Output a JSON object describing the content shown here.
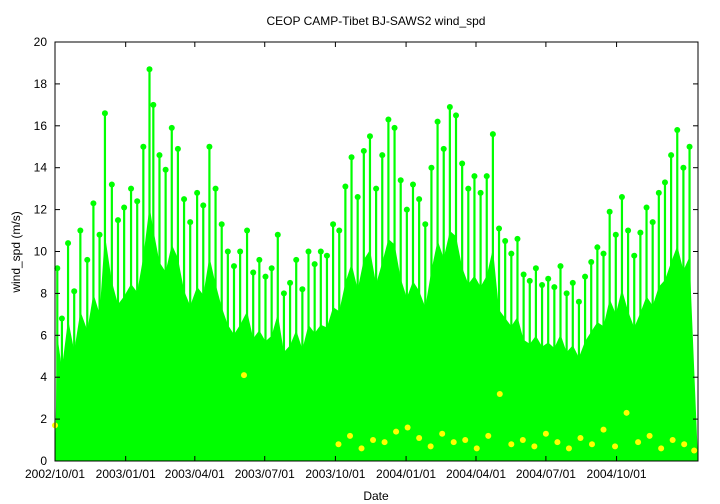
{
  "chart_data": {
    "type": "scatter",
    "title": "CEOP CAMP-Tibet BJ-SAWS2  wind_spd",
    "xlabel": "Date",
    "ylabel": "wind_spd (m/s)",
    "xlim": [
      "2002-10-01",
      "2005-01-15"
    ],
    "ylim": [
      0,
      20
    ],
    "yticks": [
      0,
      2,
      4,
      6,
      8,
      10,
      12,
      14,
      16,
      18,
      20
    ],
    "xticks": [
      {
        "date": "2002-10-01",
        "label": "2002/10/01"
      },
      {
        "date": "2003-01-01",
        "label": "2003/01/01"
      },
      {
        "date": "2003-04-01",
        "label": "2003/04/01"
      },
      {
        "date": "2003-07-01",
        "label": "2003/07/01"
      },
      {
        "date": "2003-10-01",
        "label": "2003/10/01"
      },
      {
        "date": "2004-01-01",
        "label": "2004/01/01"
      },
      {
        "date": "2004-04-01",
        "label": "2004/04/01"
      },
      {
        "date": "2004-07-01",
        "label": "2004/07/01"
      },
      {
        "date": "2004-10-01",
        "label": "2004/10/01"
      }
    ],
    "grid": false,
    "series": [
      {
        "color": "#00ff00",
        "points": [
          {
            "x": "2002-10-04",
            "y": 9.2
          },
          {
            "x": "2002-10-10",
            "y": 6.8
          },
          {
            "x": "2002-10-18",
            "y": 10.4
          },
          {
            "x": "2002-10-26",
            "y": 8.1
          },
          {
            "x": "2002-11-03",
            "y": 11.0
          },
          {
            "x": "2002-11-12",
            "y": 9.6
          },
          {
            "x": "2002-11-20",
            "y": 12.3
          },
          {
            "x": "2002-11-28",
            "y": 10.8
          },
          {
            "x": "2002-12-05",
            "y": 16.6
          },
          {
            "x": "2002-12-14",
            "y": 13.2
          },
          {
            "x": "2002-12-22",
            "y": 11.5
          },
          {
            "x": "2002-12-30",
            "y": 12.1
          },
          {
            "x": "2003-01-08",
            "y": 13.0
          },
          {
            "x": "2003-01-16",
            "y": 12.4
          },
          {
            "x": "2003-01-24",
            "y": 15.0
          },
          {
            "x": "2003-02-01",
            "y": 18.7
          },
          {
            "x": "2003-02-06",
            "y": 17.0
          },
          {
            "x": "2003-02-14",
            "y": 14.6
          },
          {
            "x": "2003-02-22",
            "y": 13.9
          },
          {
            "x": "2003-03-02",
            "y": 15.9
          },
          {
            "x": "2003-03-10",
            "y": 14.9
          },
          {
            "x": "2003-03-18",
            "y": 12.5
          },
          {
            "x": "2003-03-26",
            "y": 11.4
          },
          {
            "x": "2003-04-04",
            "y": 12.8
          },
          {
            "x": "2003-04-12",
            "y": 12.2
          },
          {
            "x": "2003-04-20",
            "y": 15.0
          },
          {
            "x": "2003-04-28",
            "y": 13.0
          },
          {
            "x": "2003-05-06",
            "y": 11.3
          },
          {
            "x": "2003-05-14",
            "y": 10.0
          },
          {
            "x": "2003-05-22",
            "y": 9.3
          },
          {
            "x": "2003-05-30",
            "y": 10.0
          },
          {
            "x": "2003-06-08",
            "y": 11.0
          },
          {
            "x": "2003-06-16",
            "y": 9.0
          },
          {
            "x": "2003-06-24",
            "y": 9.6
          },
          {
            "x": "2003-07-02",
            "y": 8.8
          },
          {
            "x": "2003-07-10",
            "y": 9.2
          },
          {
            "x": "2003-07-18",
            "y": 10.8
          },
          {
            "x": "2003-07-26",
            "y": 8.0
          },
          {
            "x": "2003-08-03",
            "y": 8.5
          },
          {
            "x": "2003-08-11",
            "y": 9.6
          },
          {
            "x": "2003-08-19",
            "y": 8.2
          },
          {
            "x": "2003-08-27",
            "y": 10.0
          },
          {
            "x": "2003-09-04",
            "y": 9.4
          },
          {
            "x": "2003-09-12",
            "y": 10.0
          },
          {
            "x": "2003-09-20",
            "y": 9.8
          },
          {
            "x": "2003-09-28",
            "y": 11.3
          },
          {
            "x": "2003-10-06",
            "y": 11.0
          },
          {
            "x": "2003-10-14",
            "y": 13.1
          },
          {
            "x": "2003-10-22",
            "y": 14.5
          },
          {
            "x": "2003-10-30",
            "y": 12.6
          },
          {
            "x": "2003-11-07",
            "y": 14.8
          },
          {
            "x": "2003-11-15",
            "y": 15.5
          },
          {
            "x": "2003-11-23",
            "y": 13.0
          },
          {
            "x": "2003-12-01",
            "y": 14.6
          },
          {
            "x": "2003-12-09",
            "y": 16.3
          },
          {
            "x": "2003-12-17",
            "y": 15.9
          },
          {
            "x": "2003-12-25",
            "y": 13.4
          },
          {
            "x": "2004-01-02",
            "y": 12.0
          },
          {
            "x": "2004-01-10",
            "y": 13.2
          },
          {
            "x": "2004-01-18",
            "y": 12.5
          },
          {
            "x": "2004-01-26",
            "y": 11.3
          },
          {
            "x": "2004-02-03",
            "y": 14.0
          },
          {
            "x": "2004-02-11",
            "y": 16.2
          },
          {
            "x": "2004-02-19",
            "y": 14.9
          },
          {
            "x": "2004-02-27",
            "y": 16.9
          },
          {
            "x": "2004-03-06",
            "y": 16.5
          },
          {
            "x": "2004-03-14",
            "y": 14.2
          },
          {
            "x": "2004-03-22",
            "y": 13.0
          },
          {
            "x": "2004-03-30",
            "y": 13.6
          },
          {
            "x": "2004-04-07",
            "y": 12.8
          },
          {
            "x": "2004-04-15",
            "y": 13.6
          },
          {
            "x": "2004-04-23",
            "y": 15.6
          },
          {
            "x": "2004-05-01",
            "y": 11.1
          },
          {
            "x": "2004-05-09",
            "y": 10.5
          },
          {
            "x": "2004-05-17",
            "y": 9.9
          },
          {
            "x": "2004-05-25",
            "y": 10.6
          },
          {
            "x": "2004-06-02",
            "y": 8.9
          },
          {
            "x": "2004-06-10",
            "y": 8.6
          },
          {
            "x": "2004-06-18",
            "y": 9.2
          },
          {
            "x": "2004-06-26",
            "y": 8.4
          },
          {
            "x": "2004-07-04",
            "y": 8.7
          },
          {
            "x": "2004-07-12",
            "y": 8.3
          },
          {
            "x": "2004-07-20",
            "y": 9.3
          },
          {
            "x": "2004-07-28",
            "y": 8.0
          },
          {
            "x": "2004-08-05",
            "y": 8.5
          },
          {
            "x": "2004-08-13",
            "y": 7.6
          },
          {
            "x": "2004-08-21",
            "y": 8.8
          },
          {
            "x": "2004-08-29",
            "y": 9.5
          },
          {
            "x": "2004-09-06",
            "y": 10.2
          },
          {
            "x": "2004-09-14",
            "y": 9.9
          },
          {
            "x": "2004-09-22",
            "y": 11.9
          },
          {
            "x": "2004-09-30",
            "y": 10.8
          },
          {
            "x": "2004-10-08",
            "y": 12.6
          },
          {
            "x": "2004-10-16",
            "y": 11.0
          },
          {
            "x": "2004-10-24",
            "y": 9.8
          },
          {
            "x": "2004-11-01",
            "y": 10.9
          },
          {
            "x": "2004-11-09",
            "y": 12.1
          },
          {
            "x": "2004-11-17",
            "y": 11.4
          },
          {
            "x": "2004-11-25",
            "y": 12.8
          },
          {
            "x": "2004-12-03",
            "y": 13.3
          },
          {
            "x": "2004-12-11",
            "y": 14.6
          },
          {
            "x": "2004-12-19",
            "y": 15.8
          },
          {
            "x": "2004-12-27",
            "y": 14.0
          },
          {
            "x": "2005-01-04",
            "y": 15.0
          }
        ]
      },
      {
        "color": "#ffff00",
        "points": [
          {
            "x": "2002-10-01",
            "y": 1.7
          },
          {
            "x": "2003-06-04",
            "y": 4.1
          },
          {
            "x": "2003-10-05",
            "y": 0.8
          },
          {
            "x": "2003-10-20",
            "y": 1.2
          },
          {
            "x": "2003-11-04",
            "y": 0.6
          },
          {
            "x": "2003-11-19",
            "y": 1.0
          },
          {
            "x": "2003-12-04",
            "y": 0.9
          },
          {
            "x": "2003-12-19",
            "y": 1.4
          },
          {
            "x": "2004-01-03",
            "y": 1.6
          },
          {
            "x": "2004-01-18",
            "y": 1.1
          },
          {
            "x": "2004-02-02",
            "y": 0.7
          },
          {
            "x": "2004-02-17",
            "y": 1.3
          },
          {
            "x": "2004-03-03",
            "y": 0.9
          },
          {
            "x": "2004-03-18",
            "y": 1.0
          },
          {
            "x": "2004-04-02",
            "y": 0.6
          },
          {
            "x": "2004-04-17",
            "y": 1.2
          },
          {
            "x": "2004-05-02",
            "y": 3.2
          },
          {
            "x": "2004-05-17",
            "y": 0.8
          },
          {
            "x": "2004-06-01",
            "y": 1.0
          },
          {
            "x": "2004-06-16",
            "y": 0.7
          },
          {
            "x": "2004-07-01",
            "y": 1.3
          },
          {
            "x": "2004-07-16",
            "y": 0.9
          },
          {
            "x": "2004-07-31",
            "y": 0.6
          },
          {
            "x": "2004-08-15",
            "y": 1.1
          },
          {
            "x": "2004-08-30",
            "y": 0.8
          },
          {
            "x": "2004-09-14",
            "y": 1.5
          },
          {
            "x": "2004-09-29",
            "y": 0.7
          },
          {
            "x": "2004-10-14",
            "y": 2.3
          },
          {
            "x": "2004-10-29",
            "y": 0.9
          },
          {
            "x": "2004-11-13",
            "y": 1.2
          },
          {
            "x": "2004-11-28",
            "y": 0.6
          },
          {
            "x": "2004-12-13",
            "y": 1.0
          },
          {
            "x": "2004-12-28",
            "y": 0.8
          },
          {
            "x": "2005-01-10",
            "y": 0.5
          }
        ]
      }
    ]
  }
}
